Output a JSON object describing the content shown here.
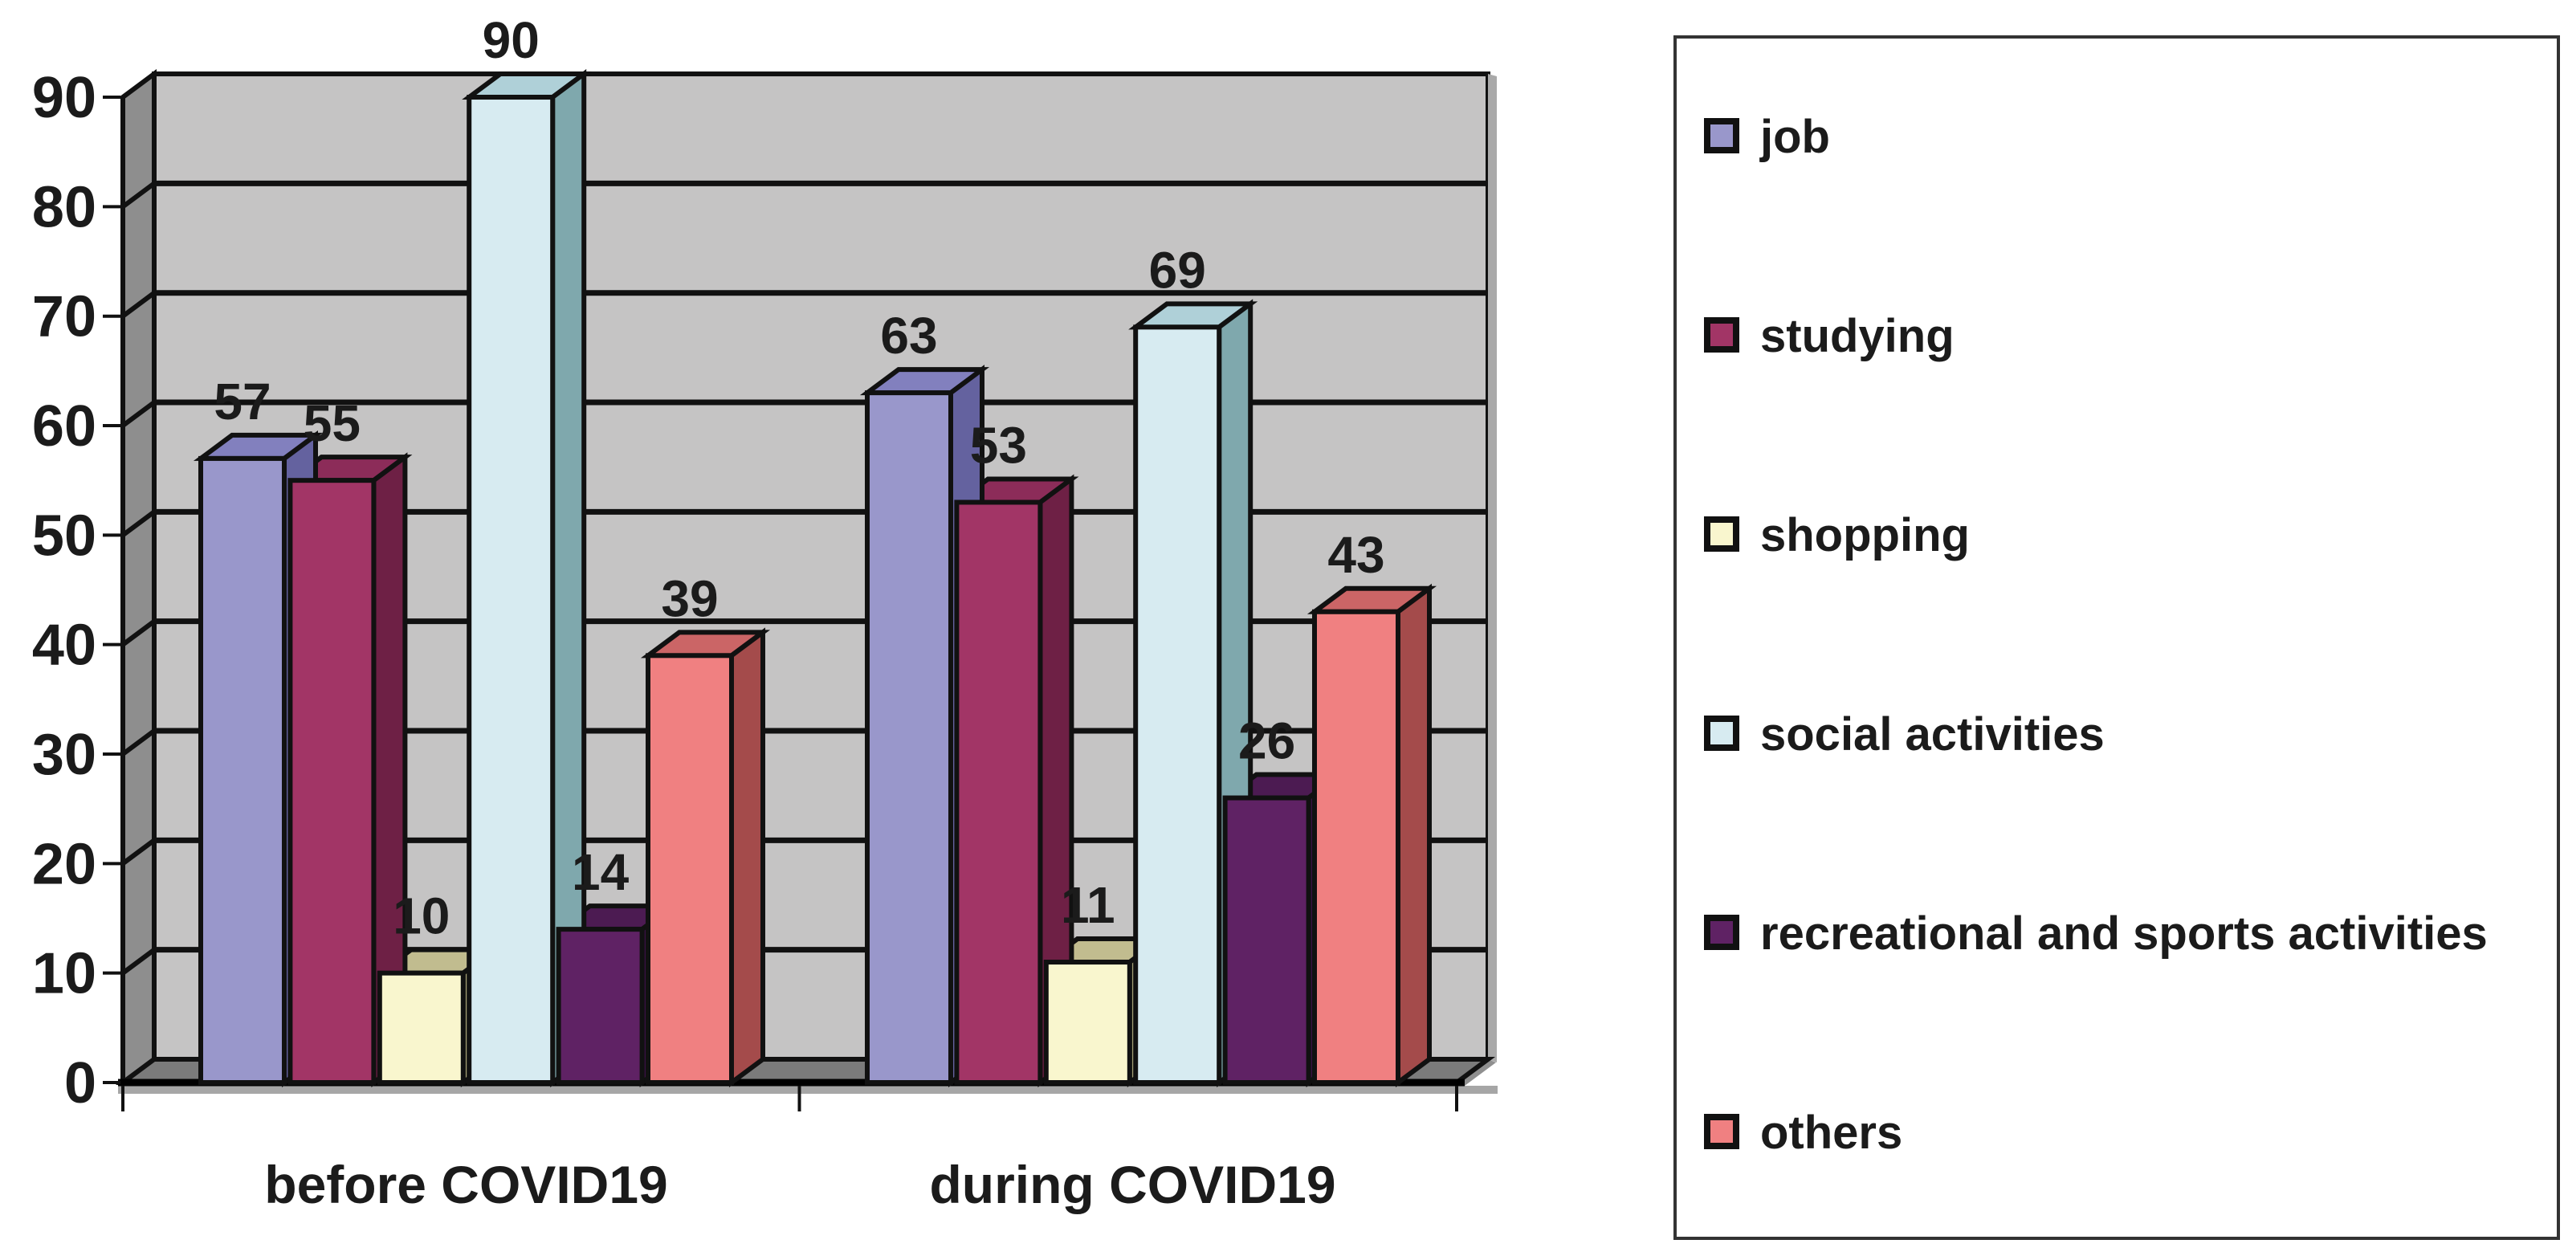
{
  "chart_data": {
    "type": "bar",
    "projection": "3d-oblique",
    "title": "",
    "categories": [
      "before COVID19",
      "during COVID19"
    ],
    "series": [
      {
        "name": "job",
        "values": [
          57,
          63
        ],
        "front": "#9997CB",
        "top": "#8280BE",
        "side": "#64629F"
      },
      {
        "name": "studying",
        "values": [
          55,
          53
        ],
        "front": "#A23566",
        "top": "#8C2C59",
        "side": "#6E2045"
      },
      {
        "name": "shopping",
        "values": [
          10,
          11
        ],
        "front": "#F9F6CE",
        "top": "#C1BC8F",
        "side": "#A5A075"
      },
      {
        "name": "social activities",
        "values": [
          90,
          69
        ],
        "front": "#D7EBF1",
        "top": "#AFD0D8",
        "side": "#7FA8AD"
      },
      {
        "name": "recreational and sports activities",
        "values": [
          14,
          26
        ],
        "front": "#5F2264",
        "top": "#4C1B52",
        "side": "#391143"
      },
      {
        "name": "others",
        "values": [
          39,
          43
        ],
        "front": "#F08081",
        "top": "#CB6566",
        "side": "#A44B4B"
      }
    ],
    "ylim": [
      0,
      90
    ],
    "ytick_step": 10,
    "ytick_labels": [
      "0",
      "10",
      "20",
      "30",
      "40",
      "50",
      "60",
      "70",
      "80",
      "90"
    ],
    "grid": true,
    "value_labels": true,
    "legend_position": "right"
  },
  "style": {
    "background": "#FFFFFF",
    "wall": "#C5C4C4",
    "wall_edge": "#A9A9A9",
    "left_wall": "#8E8E8E",
    "floor": "#7B7B7B",
    "floor_edge": "#8F8F8F",
    "gridline": "#111111",
    "outline": "#111111",
    "baseline": "#000000",
    "baseline_shadow": "#A6A6A6",
    "text": "#1B1B1B",
    "legend_border": "#333333",
    "legend_background": "#FFFFFF"
  }
}
